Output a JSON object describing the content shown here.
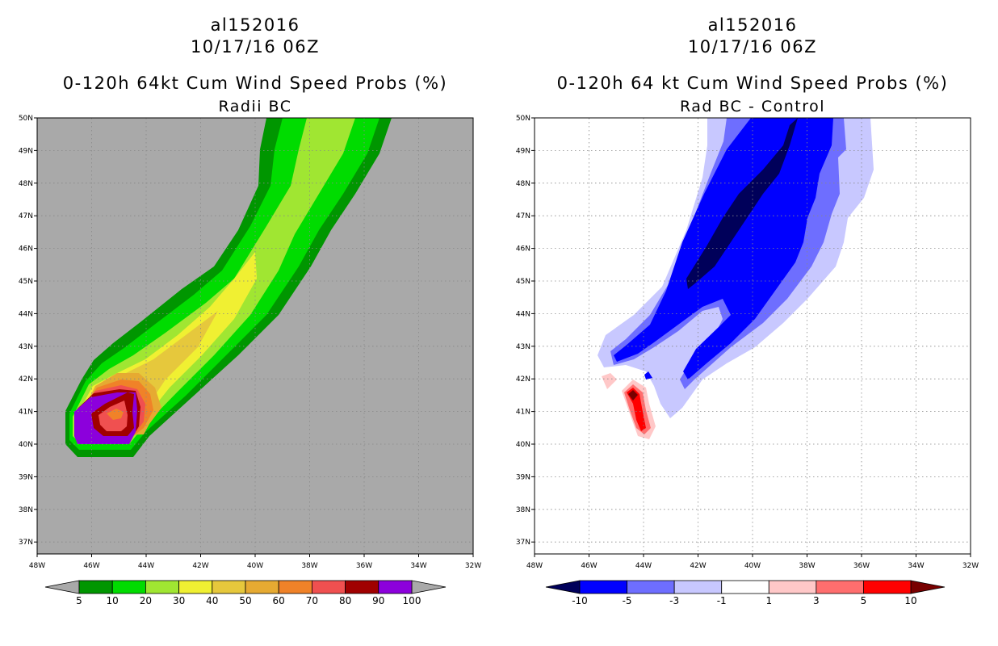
{
  "left_panel": {
    "title_line1": "al152016",
    "title_line2": "10/17/16 06Z",
    "title_line3": "0-120h 64kt Cum Wind Speed Probs (%)",
    "title_line4": "Radii BC",
    "background_color": "#a9a9a9",
    "colorbar": {
      "labels": [
        "5",
        "10",
        "20",
        "30",
        "40",
        "50",
        "60",
        "70",
        "80",
        "90",
        "100"
      ],
      "colors": [
        "#009600",
        "#00dc00",
        "#a0e632",
        "#f0f032",
        "#e6c83c",
        "#e6aa32",
        "#f08228",
        "#f05050",
        "#a00000",
        "#8c00dc"
      ],
      "end_colors": [
        "#a9a9a9",
        "#a9a9a9"
      ]
    }
  },
  "right_panel": {
    "title_line1": "al152016",
    "title_line2": "10/17/16 06Z",
    "title_line3": "0-120h 64 kt Cum Wind Speed Probs (%)",
    "title_line4": "Rad BC - Control",
    "background_color": "#ffffff",
    "colorbar": {
      "labels": [
        "-10",
        "-5",
        "-3",
        "-1",
        "1",
        "3",
        "5",
        "10"
      ],
      "colors": [
        "#0000ff",
        "#6e6eff",
        "#c8c8ff",
        "#ffffff",
        "#ffc8c8",
        "#ff6e6e",
        "#ff0000"
      ],
      "end_colors": [
        "#00005a",
        "#780000"
      ]
    }
  },
  "axes": {
    "lat_labels": [
      "50N",
      "49N",
      "48N",
      "47N",
      "46N",
      "45N",
      "44N",
      "43N",
      "42N",
      "41N",
      "40N",
      "39N",
      "38N",
      "37N"
    ],
    "lon_labels": [
      "48W",
      "46W",
      "44W",
      "42W",
      "40W",
      "38W",
      "36W",
      "34W",
      "32W"
    ]
  }
}
